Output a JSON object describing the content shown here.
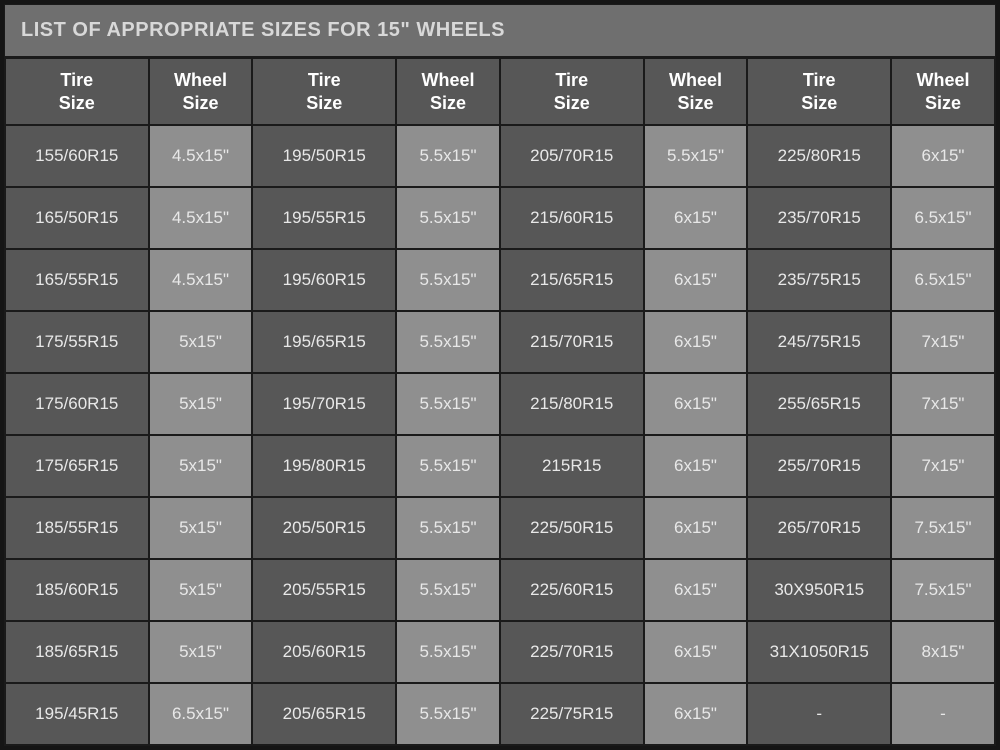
{
  "title": "LIST OF APPROPRIATE SIZES FOR 15\" WHEELS",
  "headers": {
    "tire": "Tire\nSize",
    "wheel": "Wheel\nSize"
  },
  "colors": {
    "page_bg": "#151515",
    "title_bg": "#6f6f6f",
    "title_fg": "#d8d8d8",
    "header_bg": "#575757",
    "header_fg": "#ffffff",
    "tire_bg": "#575757",
    "wheel_bg": "#8f8f8f",
    "cell_fg": "#e8e8e8",
    "border": "#1a1a1a"
  },
  "columns_layout": [
    "tire",
    "wheel",
    "tire",
    "wheel",
    "tire",
    "wheel",
    "tire",
    "wheel"
  ],
  "rows": [
    [
      "155/60R15",
      "4.5x15\"",
      "195/50R15",
      "5.5x15\"",
      "205/70R15",
      "5.5x15\"",
      "225/80R15",
      "6x15\""
    ],
    [
      "165/50R15",
      "4.5x15\"",
      "195/55R15",
      "5.5x15\"",
      "215/60R15",
      "6x15\"",
      "235/70R15",
      "6.5x15\""
    ],
    [
      "165/55R15",
      "4.5x15\"",
      "195/60R15",
      "5.5x15\"",
      "215/65R15",
      "6x15\"",
      "235/75R15",
      "6.5x15\""
    ],
    [
      "175/55R15",
      "5x15\"",
      "195/65R15",
      "5.5x15\"",
      "215/70R15",
      "6x15\"",
      "245/75R15",
      "7x15\""
    ],
    [
      "175/60R15",
      "5x15\"",
      "195/70R15",
      "5.5x15\"",
      "215/80R15",
      "6x15\"",
      "255/65R15",
      "7x15\""
    ],
    [
      "175/65R15",
      "5x15\"",
      "195/80R15",
      "5.5x15\"",
      "215R15",
      "6x15\"",
      "255/70R15",
      "7x15\""
    ],
    [
      "185/55R15",
      "5x15\"",
      "205/50R15",
      "5.5x15\"",
      "225/50R15",
      "6x15\"",
      "265/70R15",
      "7.5x15\""
    ],
    [
      "185/60R15",
      "5x15\"",
      "205/55R15",
      "5.5x15\"",
      "225/60R15",
      "6x15\"",
      "30X950R15",
      "7.5x15\""
    ],
    [
      "185/65R15",
      "5x15\"",
      "205/60R15",
      "5.5x15\"",
      "225/70R15",
      "6x15\"",
      "31X1050R15",
      "8x15\""
    ],
    [
      "195/45R15",
      "6.5x15\"",
      "205/65R15",
      "5.5x15\"",
      "225/75R15",
      "6x15\"",
      "-",
      "-"
    ]
  ]
}
